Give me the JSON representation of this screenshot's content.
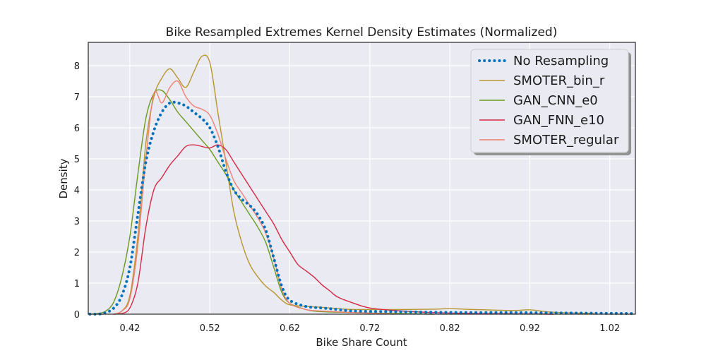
{
  "chart_data": {
    "type": "line",
    "title": "Bike Resampled Extremes Kernel Density Estimates (Normalized)",
    "xlabel": "Bike Share Count",
    "ylabel": "Density",
    "xlim": [
      0.368,
      1.052
    ],
    "ylim": [
      0,
      8.75
    ],
    "xticks": [
      0.42,
      0.52,
      0.62,
      0.72,
      0.82,
      0.92,
      1.02
    ],
    "xtick_labels": [
      "0.42",
      "0.52",
      "0.62",
      "0.72",
      "0.82",
      "0.92",
      "1.02"
    ],
    "yticks": [
      0,
      1,
      2,
      3,
      4,
      5,
      6,
      7,
      8
    ],
    "ytick_labels": [
      "0",
      "1",
      "2",
      "3",
      "4",
      "5",
      "6",
      "7",
      "8"
    ],
    "grid": true,
    "legend_position": "top-right",
    "series": [
      {
        "name": "No Resampling",
        "color": "#0072bd",
        "style": "dotted",
        "x": [
          0.37,
          0.38,
          0.39,
          0.4,
          0.41,
          0.42,
          0.43,
          0.44,
          0.45,
          0.46,
          0.47,
          0.48,
          0.49,
          0.5,
          0.51,
          0.52,
          0.53,
          0.54,
          0.55,
          0.56,
          0.57,
          0.58,
          0.59,
          0.6,
          0.61,
          0.62,
          0.64,
          0.66,
          0.68,
          0.7,
          0.75,
          0.8,
          0.85,
          0.9,
          0.95,
          1.0,
          1.05
        ],
        "y": [
          0,
          0,
          0.05,
          0.2,
          0.6,
          1.5,
          3.2,
          4.9,
          5.9,
          6.5,
          6.8,
          6.8,
          6.7,
          6.5,
          6.3,
          6.0,
          5.4,
          4.6,
          4.0,
          3.7,
          3.5,
          3.2,
          2.7,
          1.8,
          0.9,
          0.45,
          0.25,
          0.2,
          0.15,
          0.1,
          0.08,
          0.06,
          0.05,
          0.05,
          0.04,
          0.03,
          0.02
        ]
      },
      {
        "name": "SMOTER_bin_r",
        "color": "#b8962e",
        "style": "solid",
        "x": [
          0.4,
          0.41,
          0.42,
          0.43,
          0.44,
          0.45,
          0.46,
          0.47,
          0.48,
          0.49,
          0.5,
          0.51,
          0.52,
          0.53,
          0.54,
          0.55,
          0.56,
          0.57,
          0.58,
          0.59,
          0.6,
          0.61,
          0.62,
          0.64,
          0.66,
          0.68,
          0.7,
          0.75,
          0.8,
          0.82,
          0.85,
          0.9,
          0.92,
          0.95,
          1.0
        ],
        "y": [
          0,
          0.1,
          0.6,
          2.5,
          5.5,
          7.0,
          7.6,
          7.9,
          7.6,
          7.3,
          7.8,
          8.3,
          8.1,
          6.5,
          4.9,
          3.3,
          2.3,
          1.6,
          1.2,
          0.9,
          0.7,
          0.45,
          0.3,
          0.25,
          0.22,
          0.18,
          0.15,
          0.15,
          0.16,
          0.18,
          0.15,
          0.12,
          0.14,
          0.06,
          0.02
        ]
      },
      {
        "name": "GAN_CNN_e0",
        "color": "#6b9a1f",
        "style": "solid",
        "x": [
          0.37,
          0.38,
          0.39,
          0.4,
          0.41,
          0.42,
          0.43,
          0.44,
          0.45,
          0.46,
          0.47,
          0.48,
          0.49,
          0.5,
          0.51,
          0.52,
          0.53,
          0.54,
          0.55,
          0.56,
          0.57,
          0.58,
          0.59,
          0.6,
          0.61,
          0.62,
          0.64,
          0.66,
          0.7,
          0.75,
          0.8
        ],
        "y": [
          0,
          0.02,
          0.1,
          0.4,
          1.2,
          2.5,
          4.5,
          6.3,
          7.1,
          7.2,
          6.9,
          6.5,
          6.2,
          5.9,
          5.6,
          5.3,
          4.9,
          4.5,
          4.0,
          3.6,
          3.2,
          2.8,
          2.3,
          1.5,
          0.7,
          0.35,
          0.15,
          0.08,
          0.05,
          0.02,
          0
        ]
      },
      {
        "name": "GAN_FNN_e10",
        "color": "#d62845",
        "style": "solid",
        "x": [
          0.4,
          0.41,
          0.42,
          0.43,
          0.44,
          0.45,
          0.46,
          0.47,
          0.48,
          0.49,
          0.5,
          0.51,
          0.52,
          0.53,
          0.54,
          0.55,
          0.56,
          0.57,
          0.58,
          0.59,
          0.6,
          0.61,
          0.62,
          0.63,
          0.64,
          0.65,
          0.66,
          0.67,
          0.68,
          0.7,
          0.72,
          0.75,
          0.8,
          0.85,
          0.9,
          0.95
        ],
        "y": [
          0,
          0.02,
          0.2,
          1.0,
          2.8,
          4.0,
          4.4,
          4.8,
          5.1,
          5.4,
          5.45,
          5.4,
          5.35,
          5.45,
          5.3,
          4.9,
          4.5,
          4.1,
          3.7,
          3.3,
          2.9,
          2.4,
          2.0,
          1.6,
          1.4,
          1.2,
          0.95,
          0.75,
          0.55,
          0.35,
          0.2,
          0.12,
          0.05,
          0.02,
          0.01,
          0
        ]
      },
      {
        "name": "SMOTER_regular",
        "color": "#f08070",
        "style": "solid",
        "x": [
          0.4,
          0.41,
          0.42,
          0.43,
          0.44,
          0.45,
          0.46,
          0.47,
          0.48,
          0.49,
          0.5,
          0.51,
          0.52,
          0.53,
          0.54,
          0.55,
          0.56,
          0.57,
          0.58,
          0.59,
          0.6,
          0.61,
          0.62,
          0.64,
          0.66,
          0.7,
          0.75
        ],
        "y": [
          0,
          0.1,
          0.5,
          2.2,
          5.0,
          7.1,
          6.8,
          7.3,
          7.5,
          7.0,
          6.7,
          6.6,
          6.4,
          5.8,
          5.0,
          4.3,
          3.9,
          3.5,
          3.1,
          2.6,
          1.8,
          0.8,
          0.35,
          0.15,
          0.1,
          0.05,
          0
        ]
      }
    ]
  }
}
